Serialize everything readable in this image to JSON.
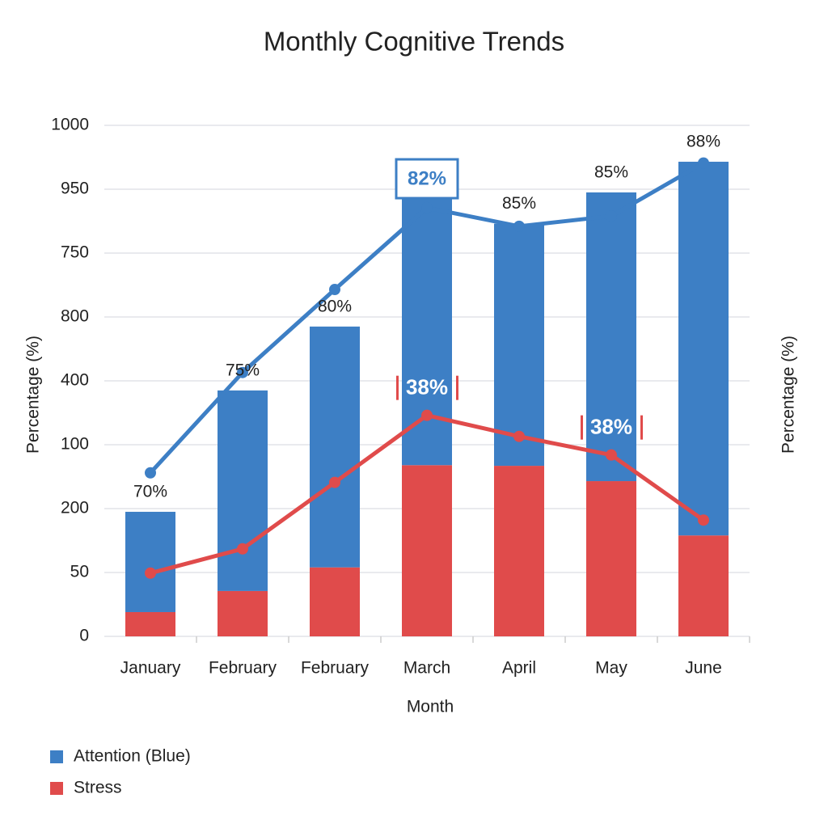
{
  "chart_data": {
    "type": "bar",
    "title": "Monthly Cognitive Trends",
    "xlabel": "Month",
    "ylabel": "Percentage (%)",
    "y2label": "Percentage (%)",
    "categories": [
      "January",
      "February",
      "February",
      "March",
      "April",
      "May",
      "June"
    ],
    "ylim": [
      0,
      8
    ],
    "yticks": [
      0,
      {
        "value": 1,
        "label": "50"
      },
      {
        "value": 2,
        "label": "200"
      },
      {
        "value": 3,
        "label": "100"
      },
      {
        "value": 4,
        "label": "400"
      },
      {
        "value": 5,
        "label": "800"
      },
      {
        "value": 6,
        "label": "750"
      },
      {
        "value": 7,
        "label": "950"
      },
      {
        "value": 8,
        "label": "1000"
      }
    ],
    "grid": true,
    "stacked": true,
    "series": [
      {
        "name": "Stress",
        "color": "#e04b4b",
        "values": [
          0.38,
          0.71,
          1.08,
          2.68,
          2.67,
          2.43,
          1.58
        ]
      },
      {
        "name": "Attention (Blue)",
        "color": "#3d7fc5",
        "values": [
          1.57,
          3.14,
          3.77,
          4.18,
          3.79,
          4.52,
          5.85
        ]
      }
    ],
    "lines": [
      {
        "color": "#3d7fc5",
        "values": [
          2.56,
          4.13,
          5.43,
          6.71,
          6.42,
          6.58,
          7.41
        ],
        "annotations": [
          "70%",
          "75%",
          "80%",
          "82%",
          "85%",
          "85%",
          "88%"
        ]
      },
      {
        "color": "#e04b4b",
        "values": [
          0.99,
          1.37,
          2.41,
          3.46,
          3.13,
          2.84,
          1.82
        ],
        "annotations": [
          null,
          null,
          null,
          "38%",
          null,
          "38%",
          null
        ]
      }
    ],
    "legend": "bottom-left"
  }
}
